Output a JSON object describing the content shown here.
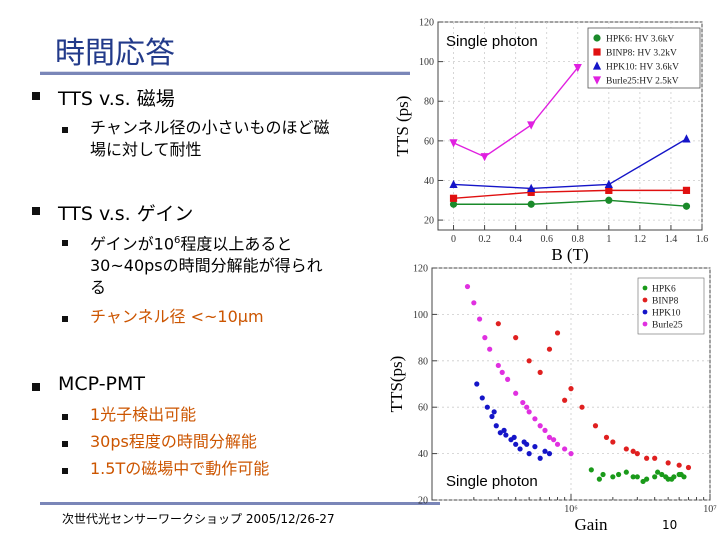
{
  "slide": {
    "title": "時間応答",
    "bullets": [
      {
        "text": "TTS v.s. 磁場",
        "subs": [
          {
            "line1": "チャンネル径の小さいものほど磁",
            "line2": "場に対して耐性"
          }
        ]
      },
      {
        "text": "TTS v.s. ゲイン",
        "subs": [
          {
            "pre": "ゲインが10",
            "sup": "6",
            "post": "程度以上あると",
            "line2": "30~40psの時間分解能が得られ",
            "line3": "る"
          },
          {
            "text": "チャンネル径 <~10μm"
          }
        ]
      },
      {
        "text": "MCP-PMT",
        "subs": [
          {
            "text": "1光子検出可能"
          },
          {
            "text": "30ps程度の時間分解能"
          },
          {
            "text": "1.5Tの磁場中で動作可能"
          }
        ]
      }
    ],
    "footer": "次世代光センサーワークショップ 2005/12/26-27",
    "page_number": "10",
    "colors": {
      "title": "#223a8a",
      "highlight": "#cc5500"
    }
  },
  "chart_data": [
    {
      "type": "line",
      "annotation": "Single photon",
      "xlabel": "B (T)",
      "ylabel": "TTS (ps)",
      "xlim": [
        -0.1,
        1.6
      ],
      "ylim": [
        15,
        120
      ],
      "xticks": [
        "0",
        "0.2",
        "0.4",
        "0.6",
        "0.8",
        "1",
        "1.2",
        "1.4",
        "1.6"
      ],
      "yticks": [
        "20",
        "40",
        "60",
        "80",
        "100",
        "120"
      ],
      "series": [
        {
          "name": "HPK6:  HV 3.6kV",
          "color": "#1a8a2a",
          "marker": "circle",
          "x": [
            0,
            0.5,
            1.0,
            1.5
          ],
          "y": [
            28,
            28,
            30,
            27
          ]
        },
        {
          "name": "BINP8:  HV 3.2kV",
          "color": "#e01010",
          "marker": "square",
          "x": [
            0,
            0.5,
            1.0,
            1.5
          ],
          "y": [
            31,
            34,
            35,
            35
          ]
        },
        {
          "name": "HPK10:  HV 3.6kV",
          "color": "#1515c8",
          "marker": "triangle",
          "x": [
            0,
            0.5,
            1.0,
            1.5
          ],
          "y": [
            38,
            36,
            38,
            61
          ]
        },
        {
          "name": "Burle25:HV 2.5kV",
          "color": "#e020e0",
          "marker": "triangle-down",
          "x": [
            0,
            0.2,
            0.5,
            0.8
          ],
          "y": [
            59,
            52,
            68,
            97
          ]
        }
      ]
    },
    {
      "type": "scatter",
      "annotation": "Single photon",
      "xlabel": "Gain",
      "ylabel": "TTS(ps)",
      "xscale": "log",
      "xlim": [
        100000,
        10000000
      ],
      "ylim": [
        20,
        120
      ],
      "xticks": [
        "10⁶",
        "10⁷"
      ],
      "yticks": [
        "20",
        "40",
        "60",
        "80",
        "100",
        "120"
      ],
      "series": [
        {
          "name": "HPK6",
          "color": "#1a9a1a",
          "x": [
            1400000,
            1700000,
            2000000,
            2500000,
            3000000,
            3500000,
            4000000,
            4500000,
            5000000,
            5500000,
            6000000,
            6500000,
            1600000,
            2200000,
            2800000,
            3300000,
            4200000,
            4800000,
            5300000,
            6200000
          ],
          "y": [
            33,
            31,
            30,
            32,
            30,
            29,
            30,
            31,
            29,
            30,
            31,
            30,
            29,
            31,
            30,
            28,
            32,
            30,
            29,
            31
          ]
        },
        {
          "name": "BINP8",
          "color": "#e02020",
          "x": [
            300000,
            400000,
            500000,
            600000,
            800000,
            1000000,
            1200000,
            1500000,
            2000000,
            2500000,
            3000000,
            3500000,
            4000000,
            5000000,
            6000000,
            7000000,
            700000,
            900000,
            1800000,
            2800000
          ],
          "y": [
            96,
            90,
            80,
            75,
            92,
            68,
            60,
            52,
            45,
            42,
            40,
            38,
            38,
            36,
            35,
            34,
            85,
            63,
            47,
            41
          ]
        },
        {
          "name": "HPK10",
          "color": "#1515c8",
          "x": [
            210000,
            230000,
            250000,
            270000,
            290000,
            310000,
            340000,
            370000,
            400000,
            430000,
            460000,
            500000,
            550000,
            600000,
            650000,
            700000,
            280000,
            330000,
            390000,
            480000
          ],
          "y": [
            70,
            64,
            60,
            56,
            52,
            49,
            48,
            46,
            44,
            42,
            45,
            40,
            43,
            38,
            41,
            40,
            58,
            50,
            47,
            44
          ]
        },
        {
          "name": "Burle25",
          "color": "#e030e0",
          "x": [
            180000,
            200000,
            220000,
            240000,
            260000,
            300000,
            350000,
            400000,
            450000,
            500000,
            550000,
            600000,
            650000,
            700000,
            800000,
            900000,
            1000000,
            320000,
            480000,
            750000
          ],
          "y": [
            112,
            105,
            98,
            90,
            85,
            78,
            72,
            66,
            62,
            58,
            55,
            52,
            50,
            47,
            44,
            42,
            40,
            75,
            60,
            46
          ]
        }
      ]
    }
  ]
}
